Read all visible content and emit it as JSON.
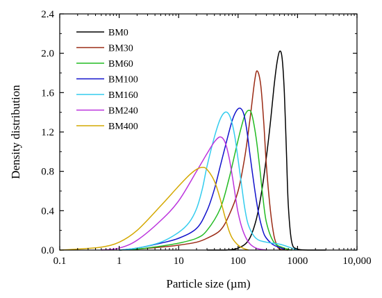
{
  "chart_data": {
    "type": "line",
    "title": "",
    "xlabel": "Particle size (µm)",
    "ylabel": "Density distribution",
    "x_scale": "log",
    "xlim": [
      0.1,
      10000
    ],
    "ylim": [
      0,
      2.4
    ],
    "x_ticks": [
      0.1,
      1,
      10,
      100,
      1000,
      10000
    ],
    "x_tick_labels": [
      "0.1",
      "1",
      "10",
      "100",
      "1000",
      "10,000"
    ],
    "y_ticks": [
      0,
      0.4,
      0.8,
      1.2,
      1.6,
      2.0,
      2.4
    ],
    "y_tick_labels": [
      "0.0",
      "0.4",
      "0.8",
      "1.2",
      "1.6",
      "2.0",
      "2.4"
    ],
    "grid": false,
    "legend_position": "top-left",
    "series": [
      {
        "name": "BM0",
        "color": "#000000",
        "x": [
          30,
          60,
          100,
          150,
          200,
          250,
          300,
          350,
          400,
          450,
          500,
          550,
          600,
          650,
          700,
          800,
          1000,
          1500,
          3000
        ],
        "y": [
          0.0,
          0.0,
          0.02,
          0.1,
          0.3,
          0.6,
          0.95,
          1.3,
          1.65,
          1.9,
          2.02,
          1.95,
          1.6,
          1.0,
          0.45,
          0.08,
          0.01,
          0.0,
          0.0
        ]
      },
      {
        "name": "BM30",
        "color": "#9a2a14",
        "x": [
          1,
          2,
          5,
          10,
          20,
          30,
          50,
          70,
          100,
          130,
          160,
          190,
          210,
          240,
          270,
          300,
          350,
          400,
          450,
          500,
          700
        ],
        "y": [
          0.0,
          0.01,
          0.03,
          0.05,
          0.08,
          0.12,
          0.2,
          0.35,
          0.6,
          0.95,
          1.35,
          1.72,
          1.82,
          1.68,
          1.3,
          0.85,
          0.4,
          0.15,
          0.05,
          0.01,
          0.0
        ]
      },
      {
        "name": "BM60",
        "color": "#22bb22",
        "x": [
          1,
          2,
          5,
          10,
          20,
          30,
          50,
          70,
          90,
          110,
          130,
          150,
          170,
          200,
          230,
          260,
          300,
          400,
          600,
          800
        ],
        "y": [
          0.0,
          0.01,
          0.04,
          0.07,
          0.12,
          0.2,
          0.42,
          0.72,
          1.0,
          1.22,
          1.37,
          1.42,
          1.38,
          1.15,
          0.85,
          0.55,
          0.28,
          0.08,
          0.02,
          0.0
        ]
      },
      {
        "name": "BM100",
        "color": "#1111cc",
        "x": [
          1,
          2,
          5,
          10,
          20,
          30,
          40,
          50,
          65,
          80,
          95,
          110,
          125,
          140,
          160,
          190,
          220,
          260,
          300,
          400,
          600
        ],
        "y": [
          0.0,
          0.02,
          0.07,
          0.12,
          0.22,
          0.4,
          0.62,
          0.85,
          1.12,
          1.32,
          1.42,
          1.44,
          1.38,
          1.22,
          0.95,
          0.62,
          0.38,
          0.2,
          0.12,
          0.05,
          0.01
        ]
      },
      {
        "name": "BM160",
        "color": "#33ccee",
        "x": [
          1,
          2,
          5,
          10,
          15,
          20,
          25,
          30,
          40,
          50,
          60,
          70,
          80,
          90,
          100,
          115,
          130,
          150,
          200,
          300,
          500,
          800,
          1000
        ],
        "y": [
          0.0,
          0.02,
          0.08,
          0.18,
          0.28,
          0.42,
          0.62,
          0.85,
          1.15,
          1.33,
          1.4,
          1.38,
          1.28,
          1.12,
          0.92,
          0.65,
          0.42,
          0.25,
          0.12,
          0.08,
          0.06,
          0.02,
          0.0
        ]
      },
      {
        "name": "BM240",
        "color": "#bb33dd",
        "x": [
          0.5,
          1,
          2,
          5,
          10,
          20,
          30,
          40,
          50,
          60,
          70,
          80,
          90,
          100,
          120,
          150,
          200,
          300
        ],
        "y": [
          0.0,
          0.02,
          0.1,
          0.3,
          0.5,
          0.8,
          0.98,
          1.1,
          1.15,
          1.1,
          0.95,
          0.75,
          0.55,
          0.38,
          0.2,
          0.08,
          0.02,
          0.0
        ]
      },
      {
        "name": "BM400",
        "color": "#d4a800",
        "x": [
          0.1,
          0.2,
          0.5,
          1,
          2,
          5,
          10,
          15,
          20,
          25,
          30,
          40,
          50,
          60,
          70,
          80,
          100,
          120,
          150
        ],
        "y": [
          0.0,
          0.01,
          0.03,
          0.08,
          0.2,
          0.45,
          0.65,
          0.76,
          0.82,
          0.84,
          0.82,
          0.7,
          0.52,
          0.34,
          0.2,
          0.12,
          0.05,
          0.02,
          0.0
        ]
      }
    ]
  }
}
